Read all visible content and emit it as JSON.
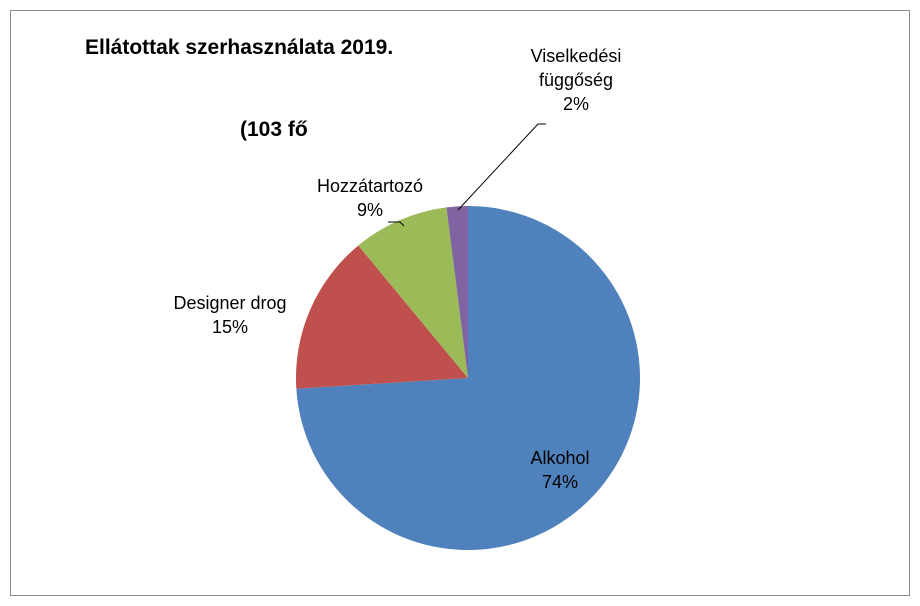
{
  "chart_data": {
    "type": "pie",
    "title": "Ellátottak szerhasználata 2019.",
    "subtitle": "(103 fő",
    "categories": [
      "Alkohol",
      "Designer drog",
      "Hozzátartozó",
      "Viselkedési függőség"
    ],
    "values": [
      74,
      15,
      9,
      2
    ],
    "value_labels": [
      "74%",
      "15%",
      "9%",
      "2%"
    ],
    "colors": [
      "#4f81bd",
      "#c0504d",
      "#9bbb59",
      "#8064a2"
    ]
  }
}
